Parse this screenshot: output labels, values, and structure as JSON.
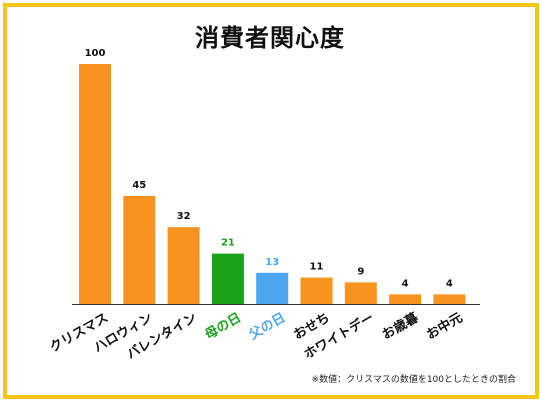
{
  "chart_data": {
    "type": "bar",
    "title": "消費者関心度",
    "categories": [
      "クリスマス",
      "ハロウィン",
      "バレンタイン",
      "母の日",
      "父の日",
      "おせち",
      "ホワイトデー",
      "お歳暮",
      "お中元"
    ],
    "values": [
      100,
      45,
      32,
      21,
      13,
      11,
      9,
      4,
      4
    ],
    "value_labels": [
      "100",
      "45",
      "32",
      "21",
      "13",
      "11",
      "9",
      "4",
      "4"
    ],
    "ylim": [
      0,
      100
    ],
    "grid": false,
    "legend": "none",
    "xlabel": "",
    "ylabel": "",
    "colors": {
      "default": "#f7931e",
      "母の日": "#1aa31a",
      "父の日": "#4da6f0",
      "frame": "#f5c518"
    },
    "note": "※数値：クリスマスの数値を100としたときの割合"
  }
}
